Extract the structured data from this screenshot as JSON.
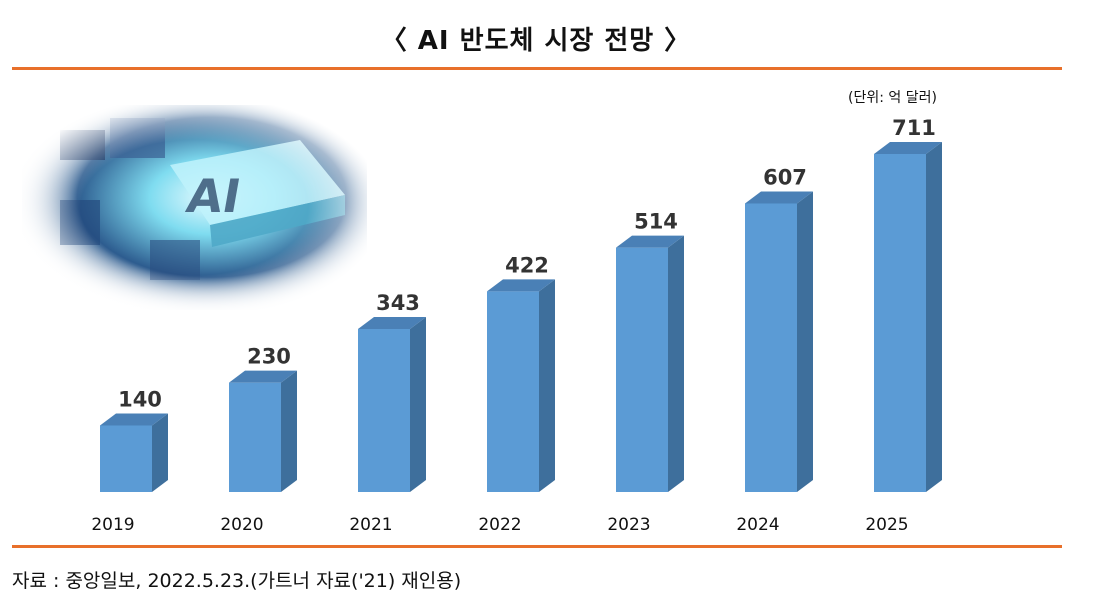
{
  "title": "〈 AI 반도체 시장 전망 〉",
  "unit_note": "(단위: 억 달러)",
  "source": "자료 : 중앙일보, 2022.5.23.(가트너 자료('21) 재인용)",
  "colors": {
    "bar_front": "#5b9bd5",
    "bar_side": "#3e6f9c",
    "bar_top": "#4a80b6",
    "rule": "#e8702a"
  },
  "chart_data": {
    "type": "bar",
    "title": "AI 반도체 시장 전망",
    "categories": [
      "2019",
      "2020",
      "2021",
      "2022",
      "2023",
      "2024",
      "2025"
    ],
    "values": [
      140,
      230,
      343,
      422,
      514,
      607,
      711
    ],
    "ylabel": "억 달러",
    "xlabel": "",
    "ylim": [
      0,
      711
    ]
  }
}
